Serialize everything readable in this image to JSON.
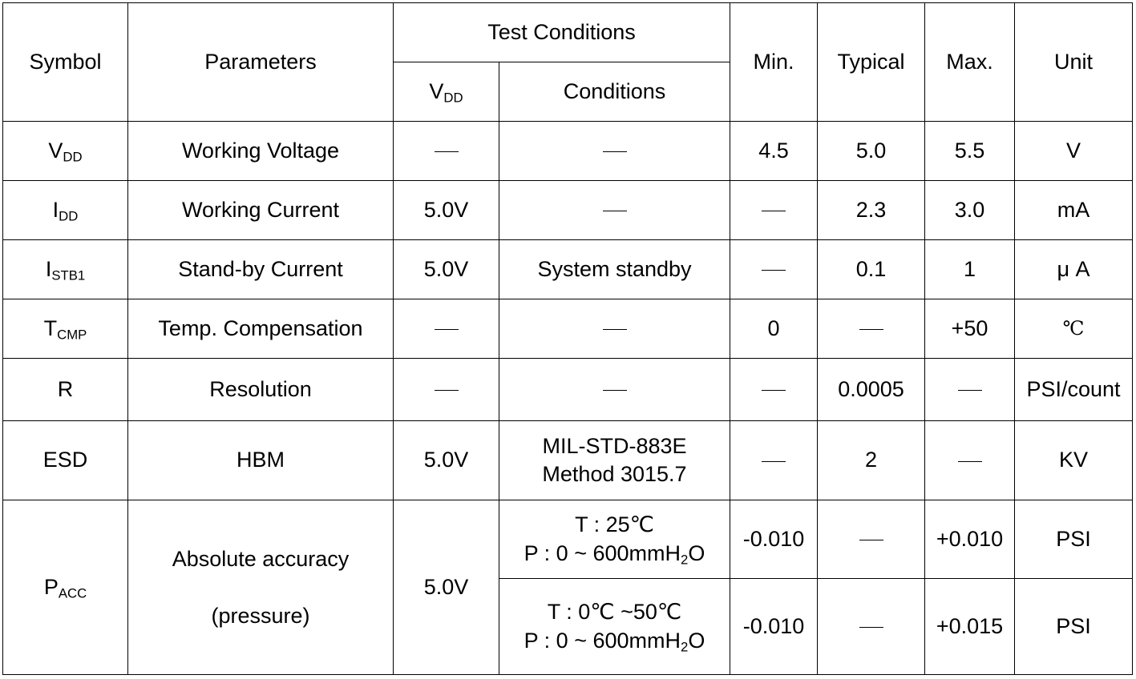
{
  "header": {
    "symbol": "Symbol",
    "parameters": "Parameters",
    "test_conditions": "Test Conditions",
    "vdd_main": "V",
    "vdd_sub": "DD",
    "conditions": "Conditions",
    "min": "Min.",
    "typical": "Typical",
    "max": "Max.",
    "unit": "Unit"
  },
  "rows": [
    {
      "sym": "V",
      "sub": "DD",
      "param": "Working Voltage",
      "vdd": "—",
      "cond": "—",
      "min": "4.5",
      "typ": "5.0",
      "max": "5.5",
      "unit": "V"
    },
    {
      "sym": "I",
      "sub": "DD",
      "param": "Working Current",
      "vdd": "5.0V",
      "cond": "—",
      "min": "—",
      "typ": "2.3",
      "max": "3.0",
      "unit": "mA"
    },
    {
      "sym": "I",
      "sub": "STB1",
      "param": "Stand-by Current",
      "vdd": "5.0V",
      "cond": "System standby",
      "min": "—",
      "typ": "0.1",
      "max": "1",
      "unit": "μ A"
    },
    {
      "sym": "T",
      "sub": "CMP",
      "param": "Temp. Compensation",
      "vdd": "—",
      "cond": "—",
      "min": "0",
      "typ": "—",
      "max": "+50",
      "unit": "℃"
    },
    {
      "sym": "R",
      "sub": "",
      "param": "Resolution",
      "vdd": "—",
      "cond": "—",
      "min": "—",
      "typ": "0.0005",
      "max": "—",
      "unit": "PSI/count"
    },
    {
      "sym": "ESD",
      "sub": "",
      "param": "HBM",
      "vdd": "5.0V",
      "cond_line1": "MIL-STD-883E",
      "cond_line2": "Method 3015.7",
      "min": "—",
      "typ": "2",
      "max": "—",
      "unit": "KV"
    }
  ],
  "pacc": {
    "sym": "P",
    "sub": "ACC",
    "param_line1": "Absolute accuracy",
    "param_line2": "(pressure)",
    "vdd": "5.0V",
    "sub_rows": [
      {
        "cond_t": "T : 25℃",
        "cond_p_pre": "P : 0 ~ 600mmH",
        "cond_p_sub": "2",
        "cond_p_post": "O",
        "min": "-0.010",
        "typ": "—",
        "max": "+0.010",
        "unit": "PSI"
      },
      {
        "cond_t": "T : 0℃ ~50℃",
        "cond_p_pre": "P : 0 ~ 600mmH",
        "cond_p_sub": "2",
        "cond_p_post": "O",
        "min": "-0.010",
        "typ": "—",
        "max": "+0.015",
        "unit": "PSI"
      }
    ]
  }
}
